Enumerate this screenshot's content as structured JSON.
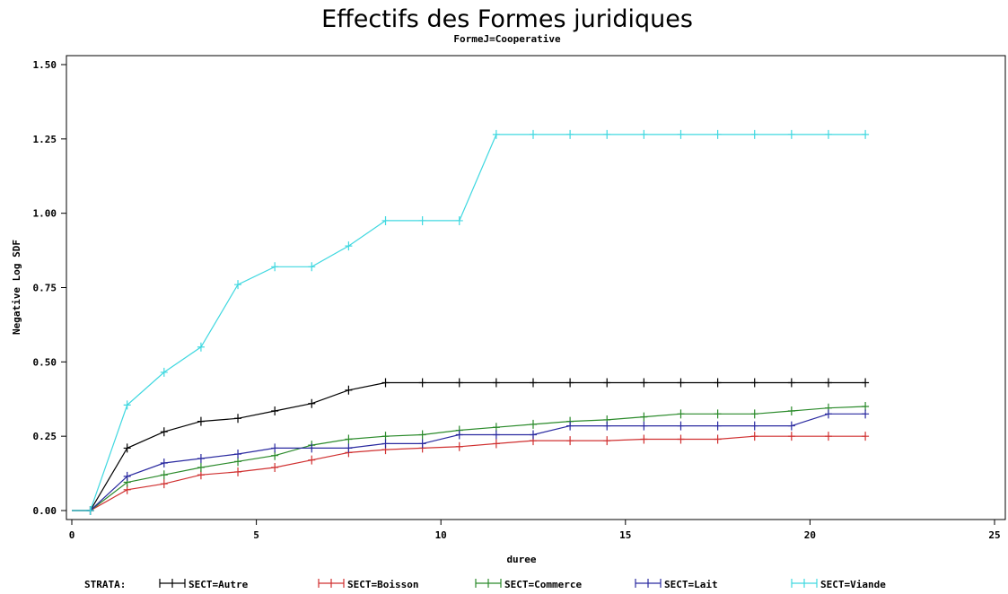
{
  "chart_data": {
    "type": "line",
    "title": "Effectifs des Formes juridiques",
    "subtitle": "FormeJ=Cooperative",
    "xlabel": "duree",
    "ylabel": "Negative Log SDF",
    "xlim": [
      0,
      25
    ],
    "ylim": [
      0,
      1.5
    ],
    "xticks": [
      "0",
      "5",
      "10",
      "15",
      "20",
      "25"
    ],
    "yticks": [
      "0.00",
      "0.25",
      "0.50",
      "0.75",
      "1.00",
      "1.25",
      "1.50"
    ],
    "legend_title": "STRATA:",
    "legend_position": "bottom",
    "grid": false,
    "x": [
      0.5,
      1.5,
      2.5,
      3.5,
      4.5,
      5.5,
      6.5,
      7.5,
      8.5,
      9.5,
      10.5,
      11.5,
      12.5,
      13.5,
      14.5,
      15.5,
      16.5,
      17.5,
      18.5,
      19.5,
      20.5,
      21.5
    ],
    "series": [
      {
        "name": "SECT=Autre",
        "color": "#000000",
        "values": [
          0,
          0.21,
          0.265,
          0.3,
          0.31,
          0.335,
          0.36,
          0.405,
          0.43,
          0.43,
          0.43,
          0.43,
          0.43,
          0.43,
          0.43,
          0.43,
          0.43,
          0.43,
          0.43,
          0.43,
          0.43,
          0.43
        ]
      },
      {
        "name": "SECT=Boisson",
        "color": "#d03030",
        "values": [
          0,
          0.07,
          0.09,
          0.12,
          0.13,
          0.145,
          0.17,
          0.195,
          0.205,
          0.21,
          0.215,
          0.225,
          0.235,
          0.235,
          0.235,
          0.24,
          0.24,
          0.24,
          0.25,
          0.25,
          0.25,
          0.25
        ]
      },
      {
        "name": "SECT=Commerce",
        "color": "#2a8a2a",
        "values": [
          0,
          0.095,
          0.12,
          0.145,
          0.165,
          0.185,
          0.22,
          0.24,
          0.25,
          0.255,
          0.27,
          0.28,
          0.29,
          0.3,
          0.305,
          0.315,
          0.325,
          0.325,
          0.325,
          0.335,
          0.345,
          0.35
        ]
      },
      {
        "name": "SECT=Lait",
        "color": "#2a2aa0",
        "values": [
          0,
          0.115,
          0.16,
          0.175,
          0.19,
          0.21,
          0.21,
          0.21,
          0.225,
          0.225,
          0.255,
          0.255,
          0.255,
          0.285,
          0.285,
          0.285,
          0.285,
          0.285,
          0.285,
          0.285,
          0.325,
          0.325
        ]
      },
      {
        "name": "SECT=Viande",
        "color": "#40d8e0",
        "values": [
          0,
          0.355,
          0.465,
          0.55,
          0.76,
          0.82,
          0.82,
          0.89,
          0.975,
          0.975,
          0.975,
          1.265,
          1.265,
          1.265,
          1.265,
          1.265,
          1.265,
          1.265,
          1.265,
          1.265,
          1.265,
          1.265
        ]
      }
    ]
  }
}
